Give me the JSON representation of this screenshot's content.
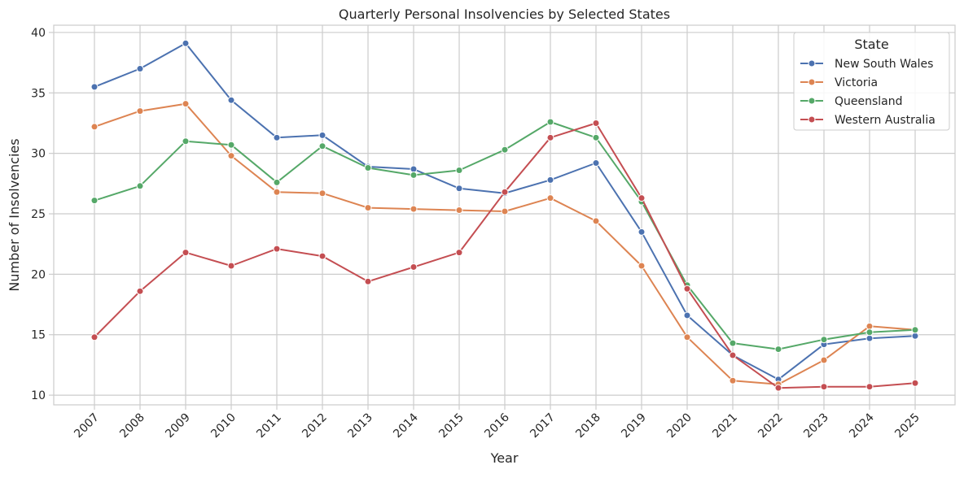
{
  "chart_data": {
    "type": "line",
    "title": "Quarterly Personal Insolvencies by Selected States",
    "xlabel": "Year",
    "ylabel": "Number of Insolvencies",
    "categories": [
      "2007",
      "2008",
      "2009",
      "2010",
      "2011",
      "2012",
      "2013",
      "2014",
      "2015",
      "2016",
      "2017",
      "2018",
      "2019",
      "2020",
      "2021",
      "2022",
      "2023",
      "2024",
      "2025"
    ],
    "yticks": [
      10,
      15,
      20,
      25,
      30,
      35,
      40
    ],
    "ylim": [
      9.2,
      40.6
    ],
    "grid": true,
    "legend": {
      "title": "State",
      "placement": "top-right"
    },
    "series": [
      {
        "name": "New South Wales",
        "color": "#4c72b0",
        "values": [
          35.5,
          37.0,
          39.1,
          34.4,
          31.3,
          31.5,
          28.9,
          28.7,
          27.1,
          26.7,
          27.8,
          29.2,
          23.5,
          16.6,
          13.3,
          11.3,
          14.2,
          14.7,
          14.9
        ]
      },
      {
        "name": "Victoria",
        "color": "#dd8452",
        "values": [
          32.2,
          33.5,
          34.1,
          29.8,
          26.8,
          26.7,
          25.5,
          25.4,
          25.3,
          25.2,
          26.3,
          24.4,
          20.7,
          14.8,
          11.2,
          10.9,
          12.9,
          15.7,
          15.4
        ]
      },
      {
        "name": "Queensland",
        "color": "#55a868",
        "values": [
          26.1,
          27.3,
          31.0,
          30.7,
          27.6,
          30.6,
          28.8,
          28.2,
          28.6,
          30.3,
          32.6,
          31.3,
          26.0,
          19.1,
          14.3,
          13.8,
          14.6,
          15.2,
          15.4
        ]
      },
      {
        "name": "Western Australia",
        "color": "#c44e52",
        "values": [
          14.8,
          18.6,
          21.8,
          20.7,
          22.1,
          21.5,
          19.4,
          20.6,
          21.8,
          26.8,
          31.3,
          32.5,
          26.3,
          18.8,
          13.3,
          10.6,
          10.7,
          10.7,
          11.0
        ]
      }
    ]
  }
}
